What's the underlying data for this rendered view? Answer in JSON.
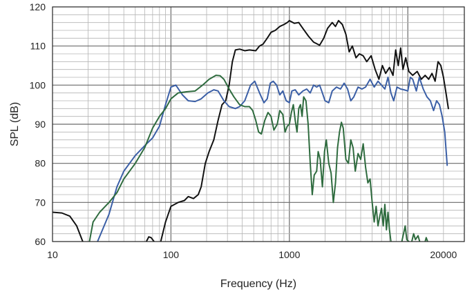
{
  "chart_data": {
    "type": "line",
    "title": "",
    "xlabel": "Frequency (Hz)",
    "ylabel": "SPL (dB)",
    "xscale": "log",
    "xlim": [
      10,
      30000
    ],
    "ylim": [
      60,
      120
    ],
    "grid": true,
    "legend": "none",
    "x_tick_labels": [
      {
        "value": 10,
        "label": "10"
      },
      {
        "value": 100,
        "label": "100"
      },
      {
        "value": 1000,
        "label": "1000"
      },
      {
        "value": 20000,
        "label": "20000"
      }
    ],
    "y_tick_labels": [
      {
        "value": 60,
        "label": "60"
      },
      {
        "value": 70,
        "label": "70"
      },
      {
        "value": 80,
        "label": "80"
      },
      {
        "value": 90,
        "label": "90"
      },
      {
        "value": 100,
        "label": "100"
      },
      {
        "value": 110,
        "label": "110"
      },
      {
        "value": 120,
        "label": "120"
      }
    ],
    "series": [
      {
        "color": "#111111",
        "segments": [
          [
            [
              10,
              67.5
            ],
            [
              12,
              67.3
            ],
            [
              14,
              66.5
            ],
            [
              16,
              64
            ],
            [
              18,
              60
            ]
          ],
          [
            [
              62,
              60
            ],
            [
              65,
              61.2
            ],
            [
              68,
              61
            ],
            [
              70,
              60.5
            ],
            [
              72,
              60
            ]
          ],
          [
            [
              82,
              60
            ],
            [
              90,
              65
            ],
            [
              100,
              69
            ],
            [
              115,
              70
            ],
            [
              130,
              70.5
            ],
            [
              140,
              71.5
            ],
            [
              155,
              71
            ],
            [
              170,
              72
            ],
            [
              180,
              74
            ],
            [
              195,
              80
            ],
            [
              210,
              83
            ],
            [
              230,
              86
            ],
            [
              250,
              91
            ],
            [
              270,
              95
            ],
            [
              290,
              96
            ],
            [
              310,
              100
            ],
            [
              330,
              106
            ],
            [
              350,
              109
            ],
            [
              380,
              109.2
            ],
            [
              420,
              108.8
            ],
            [
              460,
              109
            ],
            [
              520,
              108.8
            ],
            [
              560,
              110
            ],
            [
              600,
              110.5
            ],
            [
              650,
              112
            ],
            [
              700,
              113.5
            ],
            [
              760,
              114
            ],
            [
              830,
              115
            ],
            [
              900,
              115.5
            ],
            [
              960,
              116
            ],
            [
              1000,
              116.5
            ],
            [
              1100,
              115.8
            ],
            [
              1200,
              116
            ],
            [
              1300,
              114.5
            ],
            [
              1450,
              112.5
            ],
            [
              1600,
              111
            ],
            [
              1800,
              110.2
            ],
            [
              1950,
              112
            ],
            [
              2100,
              114.5
            ],
            [
              2300,
              116
            ],
            [
              2450,
              115
            ],
            [
              2600,
              116.5
            ],
            [
              2800,
              115.5
            ],
            [
              3000,
              113
            ],
            [
              3200,
              108.5
            ],
            [
              3400,
              110
            ],
            [
              3650,
              107
            ],
            [
              3900,
              108
            ],
            [
              4200,
              107.5
            ],
            [
              4500,
              106
            ],
            [
              4900,
              107.5
            ],
            [
              5300,
              104
            ],
            [
              5700,
              101.5
            ],
            [
              6100,
              105
            ],
            [
              6500,
              103
            ],
            [
              7000,
              104.5
            ],
            [
              7500,
              102.5
            ],
            [
              7900,
              109
            ],
            [
              8300,
              105
            ],
            [
              8700,
              109.5
            ],
            [
              9100,
              104
            ],
            [
              9600,
              107
            ],
            [
              10200,
              103.5
            ],
            [
              11000,
              102.5
            ],
            [
              12000,
              103.5
            ],
            [
              13000,
              101.5
            ],
            [
              14000,
              102.5
            ],
            [
              15000,
              101.5
            ],
            [
              16000,
              103
            ],
            [
              17000,
              101
            ],
            [
              18000,
              106
            ],
            [
              19000,
              105
            ],
            [
              20000,
              102
            ],
            [
              21000,
              98
            ],
            [
              22000,
              94
            ]
          ]
        ]
      },
      {
        "color": "#3b5fa6",
        "segments": [
          [
            [
              24,
              60
            ],
            [
              30,
              67
            ],
            [
              35,
              74
            ],
            [
              40,
              78
            ],
            [
              50,
              82
            ],
            [
              60,
              84.5
            ],
            [
              70,
              86.5
            ],
            [
              80,
              89.5
            ],
            [
              90,
              95
            ],
            [
              100,
              99.5
            ],
            [
              110,
              100
            ],
            [
              125,
              97.5
            ],
            [
              140,
              96
            ],
            [
              160,
              95.8
            ],
            [
              180,
              96.5
            ],
            [
              205,
              98
            ],
            [
              230,
              98.8
            ],
            [
              250,
              98.5
            ],
            [
              280,
              96
            ],
            [
              310,
              94.5
            ],
            [
              350,
              94
            ],
            [
              380,
              94.5
            ],
            [
              420,
              96
            ],
            [
              470,
              100
            ],
            [
              510,
              101
            ],
            [
              560,
              98
            ],
            [
              610,
              95.5
            ],
            [
              650,
              96.5
            ],
            [
              690,
              100.5
            ],
            [
              730,
              101
            ],
            [
              780,
              100
            ],
            [
              830,
              97.5
            ],
            [
              880,
              98.5
            ],
            [
              940,
              96
            ],
            [
              1000,
              95.5
            ],
            [
              1050,
              98.5
            ],
            [
              1120,
              98.8
            ],
            [
              1200,
              97.5
            ],
            [
              1300,
              98.5
            ],
            [
              1400,
              99
            ],
            [
              1500,
              98
            ],
            [
              1600,
              100
            ],
            [
              1700,
              99.5
            ],
            [
              1800,
              100
            ],
            [
              1900,
              98
            ],
            [
              2000,
              96
            ],
            [
              2150,
              95.5
            ],
            [
              2300,
              98.5
            ],
            [
              2500,
              99.5
            ],
            [
              2700,
              99
            ],
            [
              2900,
              100.5
            ],
            [
              3100,
              99
            ],
            [
              3300,
              96
            ],
            [
              3500,
              97
            ],
            [
              3800,
              99.5
            ],
            [
              4100,
              99
            ],
            [
              4400,
              99.5
            ],
            [
              4800,
              101.5
            ],
            [
              5200,
              99.5
            ],
            [
              5600,
              101
            ],
            [
              6000,
              100
            ],
            [
              6400,
              99
            ],
            [
              6800,
              102
            ],
            [
              7200,
              98
            ],
            [
              7600,
              96
            ],
            [
              8100,
              99.5
            ],
            [
              8700,
              99
            ],
            [
              9300,
              98.8
            ],
            [
              10000,
              98.5
            ],
            [
              10500,
              102
            ],
            [
              11000,
              101.5
            ],
            [
              11800,
              98.5
            ],
            [
              12500,
              102
            ],
            [
              13500,
              99
            ],
            [
              14500,
              97
            ],
            [
              15500,
              96
            ],
            [
              16500,
              93.5
            ],
            [
              17500,
              96
            ],
            [
              18500,
              95
            ],
            [
              19500,
              92
            ],
            [
              20500,
              88
            ],
            [
              21500,
              79.5
            ]
          ]
        ]
      },
      {
        "color": "#2e6b3e",
        "segments": [
          [
            [
              20.5,
              60
            ],
            [
              22,
              65
            ],
            [
              25,
              67.5
            ],
            [
              30,
              70
            ],
            [
              35,
              72.5
            ],
            [
              40,
              76
            ],
            [
              50,
              80
            ],
            [
              60,
              84
            ],
            [
              70,
              89
            ],
            [
              80,
              92
            ],
            [
              90,
              94
            ],
            [
              100,
              96.5
            ],
            [
              115,
              98
            ],
            [
              135,
              98.3
            ],
            [
              160,
              98.5
            ],
            [
              185,
              100
            ],
            [
              210,
              101.5
            ],
            [
              240,
              102.5
            ],
            [
              260,
              102.4
            ],
            [
              280,
              101.5
            ],
            [
              310,
              99
            ],
            [
              340,
              97
            ],
            [
              380,
              95
            ],
            [
              420,
              94.5
            ],
            [
              460,
              94.5
            ],
            [
              490,
              93.5
            ],
            [
              520,
              91
            ],
            [
              550,
              88
            ],
            [
              580,
              87.5
            ],
            [
              620,
              91
            ],
            [
              660,
              93
            ],
            [
              700,
              92
            ],
            [
              740,
              88.5
            ],
            [
              790,
              90
            ],
            [
              830,
              93.5
            ],
            [
              880,
              92.5
            ],
            [
              920,
              88
            ],
            [
              960,
              89.5
            ],
            [
              1000,
              90
            ],
            [
              1040,
              93
            ],
            [
              1080,
              95
            ],
            [
              1120,
              91
            ],
            [
              1160,
              88
            ],
            [
              1200,
              94
            ],
            [
              1240,
              95
            ],
            [
              1280,
              92
            ],
            [
              1320,
              97
            ],
            [
              1380,
              96
            ],
            [
              1440,
              90
            ],
            [
              1500,
              80
            ],
            [
              1560,
              72
            ],
            [
              1620,
              77
            ],
            [
              1700,
              78
            ],
            [
              1750,
              83
            ],
            [
              1820,
              81
            ],
            [
              1900,
              74
            ],
            [
              1980,
              83
            ],
            [
              2050,
              86
            ],
            [
              2150,
              80
            ],
            [
              2250,
              77.5
            ],
            [
              2350,
              70
            ],
            [
              2450,
              75
            ],
            [
              2550,
              84
            ],
            [
              2650,
              88
            ],
            [
              2750,
              90.5
            ],
            [
              2850,
              89
            ],
            [
              3000,
              81
            ],
            [
              3150,
              80
            ],
            [
              3300,
              86
            ],
            [
              3450,
              84
            ],
            [
              3600,
              78
            ],
            [
              3800,
              82.5
            ],
            [
              4000,
              81
            ],
            [
              4200,
              85
            ],
            [
              4400,
              79
            ],
            [
              4600,
              75
            ],
            [
              4800,
              76
            ],
            [
              5000,
              70
            ],
            [
              5200,
              65
            ],
            [
              5400,
              69
            ],
            [
              5600,
              64
            ],
            [
              5800,
              66.5
            ],
            [
              6000,
              68.5
            ],
            [
              6200,
              64
            ],
            [
              6400,
              69.5
            ],
            [
              6600,
              63
            ],
            [
              6800,
              67.5
            ],
            [
              7000,
              63
            ],
            [
              7200,
              60
            ]
          ],
          [
            [
              8900,
              60
            ],
            [
              9200,
              62
            ],
            [
              9500,
              64
            ],
            [
              9800,
              60.5
            ],
            [
              10200,
              60
            ]
          ],
          [
            [
              10800,
              60
            ],
            [
              11200,
              62
            ],
            [
              11600,
              60.5
            ],
            [
              12200,
              61.5
            ],
            [
              12600,
              60
            ]
          ],
          [
            [
              14000,
              60
            ],
            [
              14300,
              61
            ],
            [
              14700,
              60
            ]
          ]
        ]
      }
    ]
  }
}
